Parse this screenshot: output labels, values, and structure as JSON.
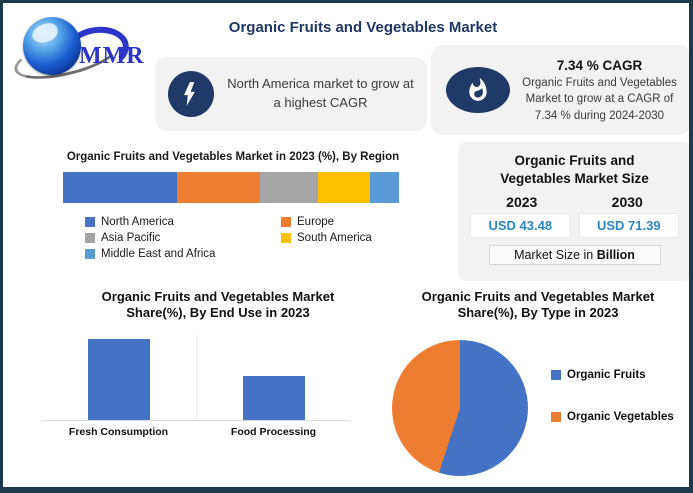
{
  "header": {
    "logo_text": "MMR",
    "title": "Organic Fruits and Vegetables Market"
  },
  "callouts": {
    "left": {
      "icon": "lightning-bolt-icon",
      "text": "North America market to grow at a highest CAGR"
    },
    "right": {
      "icon": "flame-icon",
      "heading": "7.34 % CAGR",
      "text": "Organic Fruits and Vegetables Market to grow at a CAGR of 7.34 % during 2024-2030"
    }
  },
  "market_size_panel": {
    "title_lines": [
      "Organic Fruits and",
      "Vegetables Market Size"
    ],
    "columns": [
      {
        "year": "2023",
        "value": "USD 43.48"
      },
      {
        "year": "2030",
        "value": "USD 71.39"
      }
    ],
    "footnote_prefix": "Market Size in ",
    "footnote_bold": "Billion",
    "value_color": "#2e86c1"
  },
  "chart_data": [
    {
      "type": "bar",
      "subtype": "stacked-horizontal",
      "title": "Organic Fruits and Vegetables Market in 2023 (%), By Region",
      "unit": "%",
      "series": [
        {
          "name": "North America",
          "value": 34,
          "color": "#4472C4"
        },
        {
          "name": "Europe",
          "value": 24.5,
          "color": "#ED7D31"
        },
        {
          "name": "Asia Pacific",
          "value": 17.5,
          "color": "#A5A5A5"
        },
        {
          "name": "South America",
          "value": 15.5,
          "color": "#FFC000"
        },
        {
          "name": "Middle East and Africa",
          "value": 8.5,
          "color": "#5B9BD5"
        }
      ],
      "legend_position": "bottom"
    },
    {
      "type": "bar",
      "title": "Organic Fruits and Vegetables  Market Share(%), By End Use in 2023",
      "title_lines": [
        "Organic Fruits and Vegetables  Market",
        "Share(%), By End Use in 2023"
      ],
      "categories": [
        "Fresh Consumption",
        "Food Processing"
      ],
      "values": [
        65,
        35
      ],
      "bar_color": "#4472C4",
      "ylim": [
        0,
        100
      ],
      "grid": false
    },
    {
      "type": "pie",
      "title": "Organic Fruits and Vegetables  Market Share(%), By Type in 2023",
      "title_lines": [
        "Organic Fruits and Vegetables  Market",
        "Share(%), By Type in 2023"
      ],
      "slices": [
        {
          "label": "Organic Fruits",
          "value": 55,
          "color": "#4472C4"
        },
        {
          "label": "Organic Vegetables",
          "value": 45,
          "color": "#ED7D31"
        }
      ],
      "legend_position": "right"
    }
  ]
}
